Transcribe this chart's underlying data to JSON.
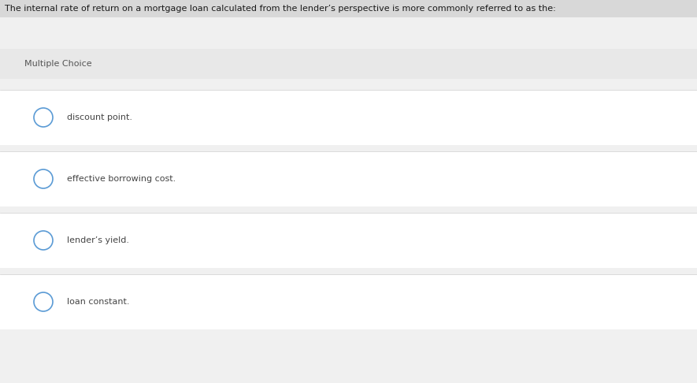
{
  "question": "The internal rate of return on a mortgage loan calculated from the lender’s perspective is more commonly referred to as the:",
  "section_label": "Multiple Choice",
  "choices": [
    "discount point.",
    "effective borrowing cost.",
    "lender’s yield.",
    "loan constant."
  ],
  "bg_color": "#f0f0f0",
  "question_bg": "#d8d8d8",
  "question_text_color": "#1a1a1a",
  "section_bg": "#e8e8e8",
  "section_text_color": "#555555",
  "choice_bg": "#ffffff",
  "choice_text_color": "#444444",
  "gap_color": "#eeeeee",
  "divider_color": "#cccccc",
  "circle_edge_color": "#5b9bd5",
  "circle_face_color": "#ffffff",
  "question_fontsize": 8.0,
  "section_fontsize": 8.0,
  "choice_fontsize": 8.0,
  "fig_width": 8.85,
  "fig_height": 4.86,
  "dpi": 100
}
